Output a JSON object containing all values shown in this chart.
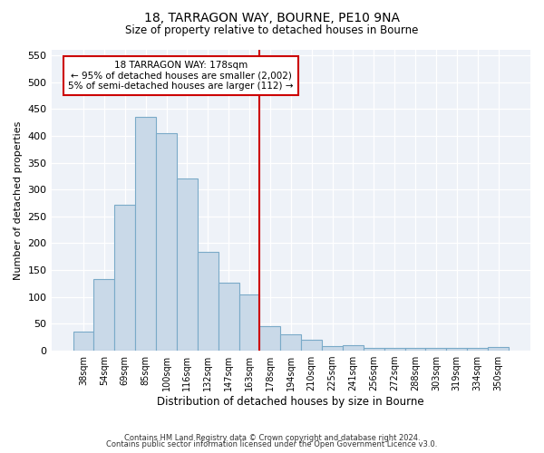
{
  "title1": "18, TARRAGON WAY, BOURNE, PE10 9NA",
  "title2": "Size of property relative to detached houses in Bourne",
  "xlabel": "Distribution of detached houses by size in Bourne",
  "ylabel": "Number of detached properties",
  "categories": [
    "38sqm",
    "54sqm",
    "69sqm",
    "85sqm",
    "100sqm",
    "116sqm",
    "132sqm",
    "147sqm",
    "163sqm",
    "178sqm",
    "194sqm",
    "210sqm",
    "225sqm",
    "241sqm",
    "256sqm",
    "272sqm",
    "288sqm",
    "303sqm",
    "319sqm",
    "334sqm",
    "350sqm"
  ],
  "values": [
    35,
    133,
    272,
    435,
    405,
    320,
    184,
    127,
    105,
    45,
    30,
    20,
    8,
    10,
    5,
    5,
    5,
    5,
    5,
    5,
    7
  ],
  "bar_color": "#c9d9e8",
  "bar_edge_color": "#7aaac8",
  "bar_linewidth": 0.8,
  "vline_color": "#cc0000",
  "annotation_line1": "18 TARRAGON WAY: 178sqm",
  "annotation_line2": "← 95% of detached houses are smaller (2,002)",
  "annotation_line3": "5% of semi-detached houses are larger (112) →",
  "annotation_box_color": "#ffffff",
  "annotation_box_edge": "#cc0000",
  "footer1": "Contains HM Land Registry data © Crown copyright and database right 2024.",
  "footer2": "Contains public sector information licensed under the Open Government Licence v3.0.",
  "ylim": [
    0,
    560
  ],
  "yticks": [
    0,
    50,
    100,
    150,
    200,
    250,
    300,
    350,
    400,
    450,
    500,
    550
  ],
  "bg_color": "#eef2f8",
  "fig_bg": "#ffffff",
  "vline_index": 9
}
